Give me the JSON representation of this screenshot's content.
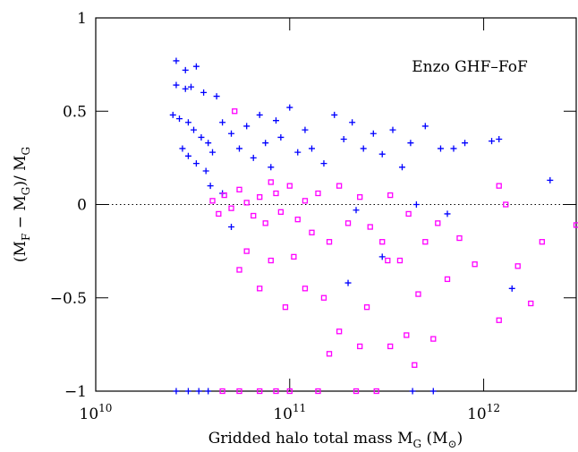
{
  "chart_data": {
    "type": "scatter",
    "annotation": "Enzo GHF–FoF",
    "xlabel": [
      "Gridded halo total mass M",
      "G",
      " (M",
      "⊙",
      ")"
    ],
    "ylabel": [
      "(M",
      "F",
      " − M",
      "G",
      ")/ M",
      "G"
    ],
    "xscale": "log",
    "xlim": [
      10000000000.0,
      3000000000000.0
    ],
    "ylim": [
      -1,
      1
    ],
    "xticks": [
      {
        "value": 10000000000.0,
        "label": "10",
        "exponent": "10"
      },
      {
        "value": 100000000000.0,
        "label": "10",
        "exponent": "11"
      },
      {
        "value": 1000000000000.0,
        "label": "10",
        "exponent": "12"
      }
    ],
    "yticks": [
      {
        "value": -1,
        "label": "−1"
      },
      {
        "value": -0.5,
        "label": "−0.5"
      },
      0,
      0.5,
      1
    ],
    "hline": 0,
    "series": [
      {
        "color": "#0000ff",
        "marker": "plus",
        "x": [
          26000000000.0,
          29000000000.0,
          33000000000.0,
          26000000000.0,
          29000000000.0,
          31000000000.0,
          36000000000.0,
          42000000000.0,
          25000000000.0,
          27000000000.0,
          30000000000.0,
          32000000000.0,
          35000000000.0,
          38000000000.0,
          28000000000.0,
          30000000000.0,
          33000000000.0,
          37000000000.0,
          40000000000.0,
          45000000000.0,
          50000000000.0,
          55000000000.0,
          60000000000.0,
          65000000000.0,
          70000000000.0,
          75000000000.0,
          80000000000.0,
          85000000000.0,
          90000000000.0,
          100000000000.0,
          110000000000.0,
          120000000000.0,
          130000000000.0,
          150000000000.0,
          170000000000.0,
          190000000000.0,
          210000000000.0,
          240000000000.0,
          270000000000.0,
          300000000000.0,
          340000000000.0,
          380000000000.0,
          420000000000.0,
          500000000000.0,
          600000000000.0,
          700000000000.0,
          800000000000.0,
          1100000000000.0,
          1200000000000.0,
          2200000000000.0,
          1400000000000.0,
          50000000000.0,
          45000000000.0,
          200000000000.0,
          300000000000.0,
          650000000000.0,
          450000000000.0,
          26000000000.0,
          30000000000.0,
          34000000000.0,
          38000000000.0,
          430000000000.0,
          550000000000.0,
          39000000000.0,
          220000000000.0
        ],
        "values": [
          0.77,
          0.72,
          0.74,
          0.64,
          0.62,
          0.63,
          0.6,
          0.58,
          0.48,
          0.46,
          0.44,
          0.4,
          0.36,
          0.33,
          0.3,
          0.26,
          0.22,
          0.18,
          0.28,
          0.44,
          0.38,
          0.3,
          0.42,
          0.25,
          0.48,
          0.33,
          0.2,
          0.45,
          0.36,
          0.52,
          0.28,
          0.4,
          0.3,
          0.22,
          0.48,
          0.35,
          0.44,
          0.3,
          0.38,
          0.27,
          0.4,
          0.2,
          0.33,
          0.42,
          0.3,
          0.3,
          0.33,
          0.34,
          0.35,
          0.13,
          -0.45,
          -0.12,
          0.06,
          -0.42,
          -0.28,
          -0.05,
          0.0,
          -1,
          -1,
          -1,
          -1,
          -1,
          -1,
          0.1,
          -0.03
        ]
      },
      {
        "color": "#ff00ff",
        "marker": "square",
        "x": [
          40000000000.0,
          43000000000.0,
          46000000000.0,
          50000000000.0,
          55000000000.0,
          60000000000.0,
          65000000000.0,
          70000000000.0,
          75000000000.0,
          80000000000.0,
          52000000000.0,
          85000000000.0,
          90000000000.0,
          100000000000.0,
          110000000000.0,
          120000000000.0,
          130000000000.0,
          140000000000.0,
          160000000000.0,
          180000000000.0,
          200000000000.0,
          230000000000.0,
          260000000000.0,
          300000000000.0,
          330000000000.0,
          370000000000.0,
          410000000000.0,
          460000000000.0,
          500000000000.0,
          580000000000.0,
          750000000000.0,
          900000000000.0,
          1200000000000.0,
          1300000000000.0,
          1200000000000.0,
          1500000000000.0,
          1750000000000.0,
          2000000000000.0,
          3000000000000.0,
          55000000000.0,
          70000000000.0,
          95000000000.0,
          120000000000.0,
          150000000000.0,
          180000000000.0,
          250000000000.0,
          320000000000.0,
          400000000000.0,
          440000000000.0,
          550000000000.0,
          160000000000.0,
          230000000000.0,
          60000000000.0,
          80000000000.0,
          105000000000.0,
          45000000000.0,
          55000000000.0,
          70000000000.0,
          85000000000.0,
          100000000000.0,
          140000000000.0,
          220000000000.0,
          280000000000.0,
          330000000000.0,
          650000000000.0
        ],
        "values": [
          0.02,
          -0.05,
          0.05,
          -0.02,
          0.08,
          0.01,
          -0.06,
          0.04,
          -0.1,
          0.12,
          0.5,
          0.06,
          -0.04,
          0.1,
          -0.08,
          0.02,
          -0.15,
          0.06,
          -0.2,
          0.1,
          -0.1,
          0.04,
          -0.12,
          -0.2,
          0.05,
          -0.3,
          -0.05,
          -0.48,
          -0.2,
          -0.1,
          -0.18,
          -0.32,
          0.1,
          0.0,
          -0.62,
          -0.33,
          -0.53,
          -0.2,
          -0.11,
          -0.35,
          -0.45,
          -0.55,
          -0.45,
          -0.5,
          -0.68,
          -0.55,
          -0.3,
          -0.7,
          -0.86,
          -0.72,
          -0.8,
          -0.76,
          -0.25,
          -0.3,
          -0.28,
          -1,
          -1,
          -1,
          -1,
          -1,
          -1,
          -1,
          -1,
          -0.76,
          -0.4
        ]
      }
    ]
  }
}
